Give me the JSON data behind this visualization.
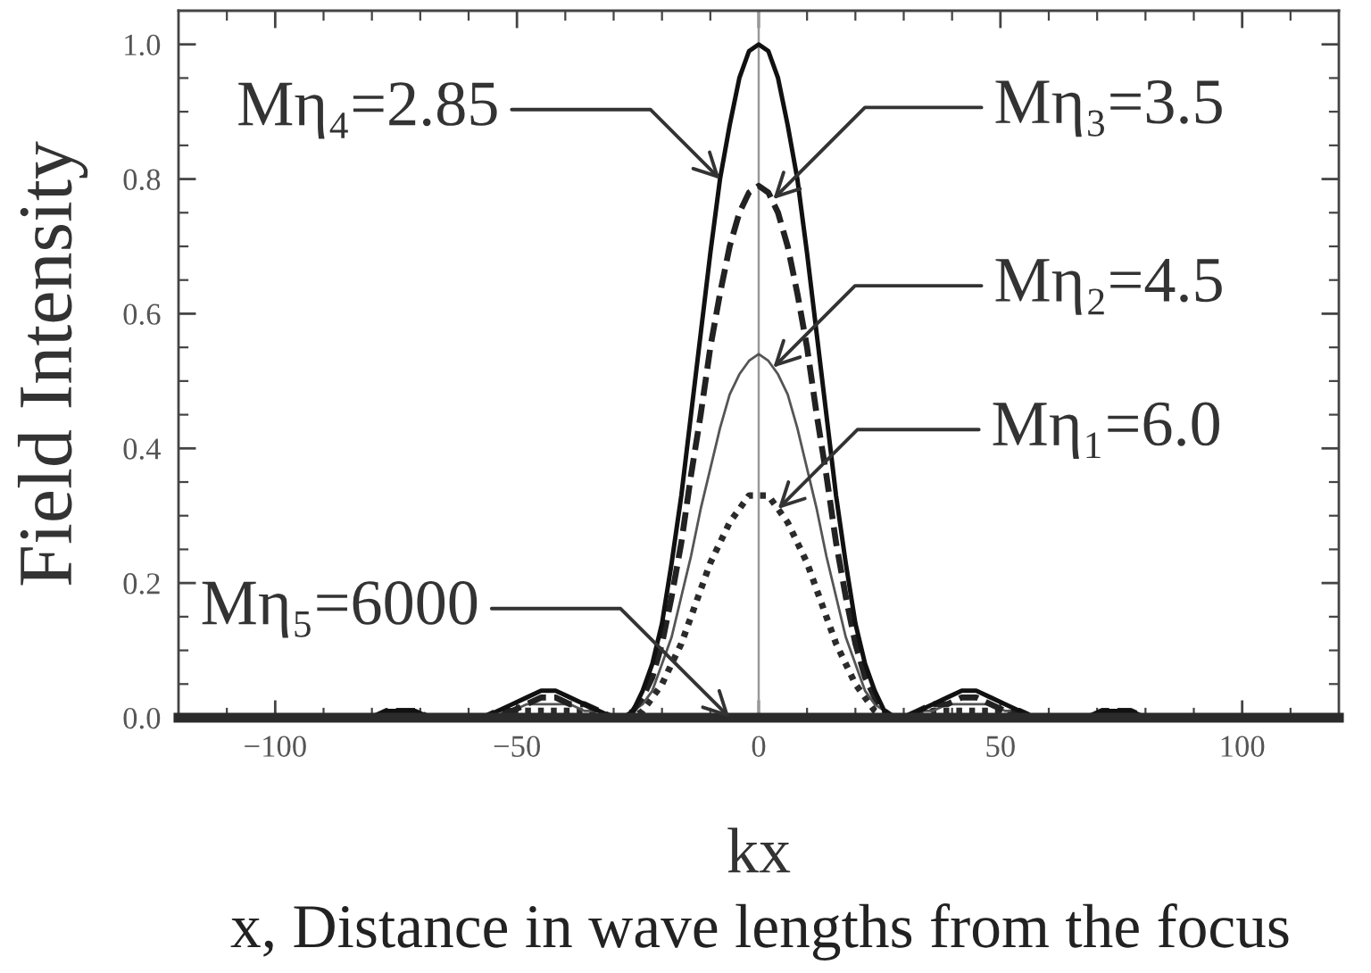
{
  "chart_data": {
    "type": "line",
    "xlabel": "kx",
    "ylabel": "Field Intensity",
    "x": [
      -120,
      -105,
      -90,
      -84,
      -80,
      -77,
      -74,
      -71,
      -68,
      -64,
      -60,
      -57,
      -54,
      -51,
      -48,
      -45,
      -42,
      -39,
      -36,
      -33,
      -30,
      -28,
      -26,
      -24,
      -22,
      -20,
      -18,
      -16,
      -14,
      -12,
      -10,
      -8,
      -6,
      -4,
      -2,
      0,
      2,
      4,
      6,
      8,
      10,
      12,
      14,
      16,
      18,
      20,
      22,
      24,
      26,
      28,
      30,
      33,
      36,
      39,
      42,
      45,
      48,
      51,
      54,
      57,
      60,
      64,
      68,
      71,
      74,
      77,
      80,
      84,
      90,
      105,
      120
    ],
    "series": [
      {
        "color": "#2b2b2b",
        "line_style": "dotted",
        "values": [
          0,
          0,
          0,
          0,
          0,
          0,
          0,
          0,
          0,
          0,
          0,
          0,
          0,
          0.01,
          0.01,
          0.01,
          0.01,
          0.01,
          0.01,
          0,
          0,
          0,
          0,
          0.01,
          0.03,
          0.05,
          0.08,
          0.11,
          0.15,
          0.19,
          0.23,
          0.26,
          0.29,
          0.31,
          0.33,
          0.33,
          0.33,
          0.31,
          0.29,
          0.26,
          0.23,
          0.19,
          0.15,
          0.11,
          0.08,
          0.05,
          0.03,
          0.01,
          0,
          0,
          0,
          0,
          0.01,
          0.01,
          0.01,
          0.01,
          0.01,
          0.01,
          0,
          0,
          0,
          0,
          0,
          0,
          0,
          0,
          0,
          0,
          0,
          0,
          0
        ]
      },
      {
        "color": "#555555",
        "line_style": "solid",
        "values": [
          0,
          0,
          0,
          0,
          0,
          0,
          0.01,
          0,
          0,
          0,
          0,
          0,
          0.01,
          0.01,
          0.02,
          0.02,
          0.02,
          0.02,
          0.01,
          0.01,
          0,
          0,
          0.01,
          0.02,
          0.04,
          0.08,
          0.12,
          0.18,
          0.24,
          0.31,
          0.37,
          0.43,
          0.48,
          0.51,
          0.53,
          0.54,
          0.53,
          0.51,
          0.48,
          0.43,
          0.37,
          0.31,
          0.24,
          0.18,
          0.12,
          0.08,
          0.04,
          0.02,
          0.01,
          0,
          0,
          0.01,
          0.01,
          0.02,
          0.02,
          0.02,
          0.02,
          0.01,
          0.01,
          0,
          0,
          0,
          0,
          0,
          0.01,
          0,
          0,
          0,
          0,
          0,
          0
        ]
      },
      {
        "color": "#222222",
        "line_style": "dashed",
        "values": [
          0,
          0,
          0,
          0,
          0,
          0.01,
          0.01,
          0.01,
          0,
          0,
          0,
          0,
          0.01,
          0.01,
          0.02,
          0.03,
          0.03,
          0.02,
          0.02,
          0.01,
          0,
          0,
          0.01,
          0.03,
          0.06,
          0.11,
          0.18,
          0.26,
          0.36,
          0.45,
          0.55,
          0.63,
          0.7,
          0.75,
          0.78,
          0.79,
          0.78,
          0.75,
          0.7,
          0.63,
          0.55,
          0.45,
          0.36,
          0.26,
          0.18,
          0.11,
          0.06,
          0.03,
          0.01,
          0,
          0,
          0.01,
          0.02,
          0.02,
          0.03,
          0.03,
          0.02,
          0.01,
          0.01,
          0,
          0,
          0,
          0,
          0.01,
          0.01,
          0.01,
          0,
          0,
          0,
          0,
          0
        ]
      },
      {
        "color": "#111111",
        "line_style": "solid",
        "values": [
          0,
          0,
          0,
          0,
          0,
          0.01,
          0.01,
          0.01,
          0,
          0,
          0,
          0,
          0.01,
          0.02,
          0.03,
          0.04,
          0.04,
          0.03,
          0.02,
          0.01,
          0,
          0,
          0.01,
          0.04,
          0.08,
          0.14,
          0.23,
          0.33,
          0.45,
          0.57,
          0.69,
          0.8,
          0.88,
          0.95,
          0.99,
          1.0,
          0.99,
          0.95,
          0.88,
          0.8,
          0.69,
          0.57,
          0.45,
          0.33,
          0.23,
          0.14,
          0.08,
          0.04,
          0.01,
          0,
          0,
          0.01,
          0.02,
          0.03,
          0.04,
          0.04,
          0.03,
          0.02,
          0.01,
          0,
          0,
          0,
          0,
          0.01,
          0.01,
          0.01,
          0,
          0,
          0,
          0,
          0
        ]
      },
      {
        "color": "#2b2b2b",
        "line_style": "solid",
        "x": [
          -120,
          120
        ],
        "values": [
          0,
          0
        ]
      }
    ],
    "xlim": [
      -120,
      120
    ],
    "ylim": [
      0,
      1.05
    ],
    "xticks": [
      {
        "value": -110,
        "label": null
      },
      {
        "value": -100,
        "label": "−100"
      },
      {
        "value": -90,
        "label": null
      },
      {
        "value": -80,
        "label": null
      },
      {
        "value": -70,
        "label": null
      },
      {
        "value": -60,
        "label": null
      },
      {
        "value": -50,
        "label": "−50"
      },
      {
        "value": -40,
        "label": null
      },
      {
        "value": -30,
        "label": null
      },
      {
        "value": -20,
        "label": null
      },
      {
        "value": -10,
        "label": null
      },
      0,
      {
        "value": 10,
        "label": null
      },
      {
        "value": 20,
        "label": null
      },
      {
        "value": 30,
        "label": null
      },
      {
        "value": 40,
        "label": null
      },
      50,
      {
        "value": 60,
        "label": null
      },
      {
        "value": 70,
        "label": null
      },
      {
        "value": 80,
        "label": null
      },
      {
        "value": 90,
        "label": null
      },
      100,
      {
        "value": 110,
        "label": null
      }
    ],
    "yticks": [
      {
        "value": 0,
        "label": "0.0"
      },
      {
        "value": 0.05,
        "label": null
      },
      {
        "value": 0.1,
        "label": null
      },
      {
        "value": 0.15,
        "label": null
      },
      0.2,
      {
        "value": 0.25,
        "label": null
      },
      {
        "value": 0.3,
        "label": null
      },
      {
        "value": 0.35,
        "label": null
      },
      0.4,
      {
        "value": 0.45,
        "label": null
      },
      {
        "value": 0.5,
        "label": null
      },
      {
        "value": 0.55,
        "label": null
      },
      0.6,
      {
        "value": 0.65,
        "label": null
      },
      {
        "value": 0.7,
        "label": null
      },
      {
        "value": 0.75,
        "label": null
      },
      0.8,
      {
        "value": 0.85,
        "label": null
      },
      {
        "value": 0.9,
        "label": null
      },
      {
        "value": 0.95,
        "label": null
      },
      {
        "value": 1,
        "label": "1.0"
      }
    ],
    "grid": false,
    "ref_lines": [
      {
        "axis": "x",
        "value": 0,
        "color": "#999999"
      }
    ],
    "annotations": [
      {
        "text": "Mη₄=2.85",
        "x": -8,
        "y": 0.8
      },
      {
        "text": "Mη₃=3.5",
        "x": 3,
        "y": 0.77
      },
      {
        "text": "Mη₂=4.5",
        "x": 3,
        "y": 0.52
      },
      {
        "text": "Mη₁=6.0",
        "x": 4,
        "y": 0.31
      },
      {
        "text": "Mη₅=6000",
        "x": -6,
        "y": 0
      },
      "x, Distance in wave lengths from the focus"
    ]
  }
}
